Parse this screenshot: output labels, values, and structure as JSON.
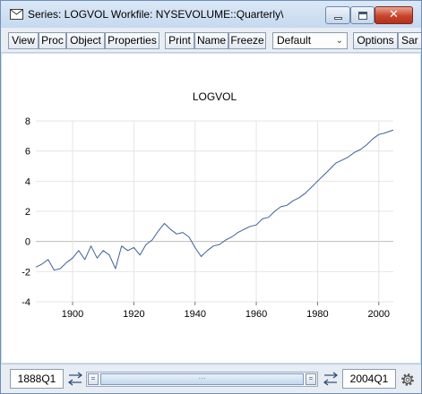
{
  "window": {
    "title": "Series: LOGVOL   Workfile: NYSEVOLUME::Quarterly\\"
  },
  "toolbar": {
    "view": "View",
    "proc": "Proc",
    "object": "Object",
    "properties": "Properties",
    "print": "Print",
    "name": "Name",
    "freeze": "Freeze",
    "view_select": "Default",
    "options": "Options",
    "sample": "Sar"
  },
  "icons": {
    "window": "envelope-icon",
    "minimize": "minimize-icon",
    "maximize": "maximize-icon",
    "close": "close-icon",
    "swap_left": "swap-arrows-icon",
    "swap_right": "swap-arrows-icon",
    "settings": "gear-icon",
    "dropdown": "chevron-down-icon"
  },
  "colors": {
    "series_line": "#3d5f9a",
    "close_button": "#c8432b",
    "grid": "#e4e4e4",
    "zero_line": "#bcbcbc"
  },
  "chart_data": {
    "type": "line",
    "title": "LOGVOL",
    "xlabel": "",
    "ylabel": "",
    "xlim": [
      1888,
      2004.75
    ],
    "ylim": [
      -4,
      8
    ],
    "x_ticks": [
      1900,
      1920,
      1940,
      1960,
      1980,
      2000
    ],
    "y_ticks": [
      -4,
      -2,
      0,
      2,
      4,
      6,
      8
    ],
    "grid": true,
    "legend": "none",
    "series": [
      {
        "x": [
          1888,
          1890,
          1892,
          1894,
          1896,
          1898,
          1900,
          1902,
          1904,
          1906,
          1908,
          1910,
          1912,
          1914,
          1916,
          1918,
          1920,
          1922,
          1924,
          1926,
          1928,
          1930,
          1932,
          1934,
          1936,
          1938,
          1940,
          1942,
          1944,
          1946,
          1948,
          1950,
          1952,
          1954,
          1956,
          1958,
          1960,
          1962,
          1964,
          1966,
          1968,
          1970,
          1972,
          1974,
          1976,
          1978,
          1980,
          1982,
          1984,
          1986,
          1988,
          1990,
          1992,
          1994,
          1996,
          1998,
          2000,
          2002,
          2004.75
        ],
        "values": [
          -1.7,
          -1.5,
          -1.2,
          -1.9,
          -1.8,
          -1.4,
          -1.1,
          -0.6,
          -1.2,
          -0.3,
          -1.1,
          -0.6,
          -0.9,
          -1.8,
          -0.3,
          -0.6,
          -0.4,
          -0.9,
          -0.2,
          0.1,
          0.7,
          1.2,
          0.8,
          0.5,
          0.6,
          0.3,
          -0.4,
          -1.0,
          -0.6,
          -0.3,
          -0.2,
          0.1,
          0.3,
          0.6,
          0.8,
          1.0,
          1.1,
          1.5,
          1.6,
          2.0,
          2.3,
          2.4,
          2.7,
          2.9,
          3.2,
          3.6,
          4.0,
          4.4,
          4.8,
          5.2,
          5.4,
          5.6,
          5.9,
          6.1,
          6.4,
          6.8,
          7.1,
          7.2,
          7.4
        ]
      }
    ]
  },
  "sample": {
    "start": "1888Q1",
    "end": "2004Q1"
  }
}
